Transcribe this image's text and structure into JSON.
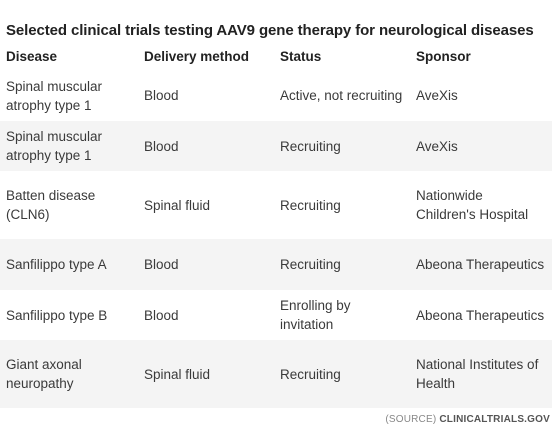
{
  "title": "Selected clinical trials testing AAV9 gene therapy for neurological diseases",
  "columns": [
    "Disease",
    "Delivery method",
    "Status",
    "Sponsor"
  ],
  "rows": [
    [
      "Spinal muscular atrophy type 1",
      "Blood",
      "Active, not recruiting",
      "AveXis"
    ],
    [
      "Spinal muscular atrophy type 1",
      "Blood",
      "Recruiting",
      "AveXis"
    ],
    [
      "Batten disease (CLN6)",
      "Spinal fluid",
      "Recruiting",
      "Nationwide Children's Hospital"
    ],
    [
      "Sanfilippo type A",
      "Blood",
      "Recruiting",
      "Abeona Therapeutics"
    ],
    [
      "Sanfilippo type B",
      "Blood",
      "Enrolling by invitation",
      "Abeona Therapeutics"
    ],
    [
      "Giant axonal neuropathy",
      "Spinal fluid",
      "Recruiting",
      "National Institutes of Health"
    ]
  ],
  "source_prefix": "(SOURCE)",
  "source_name": "CLINICALTRIALS.GOV",
  "colors": {
    "row_shade": "#f4f4f4",
    "text": "#3a3a3a",
    "header": "#222222"
  }
}
